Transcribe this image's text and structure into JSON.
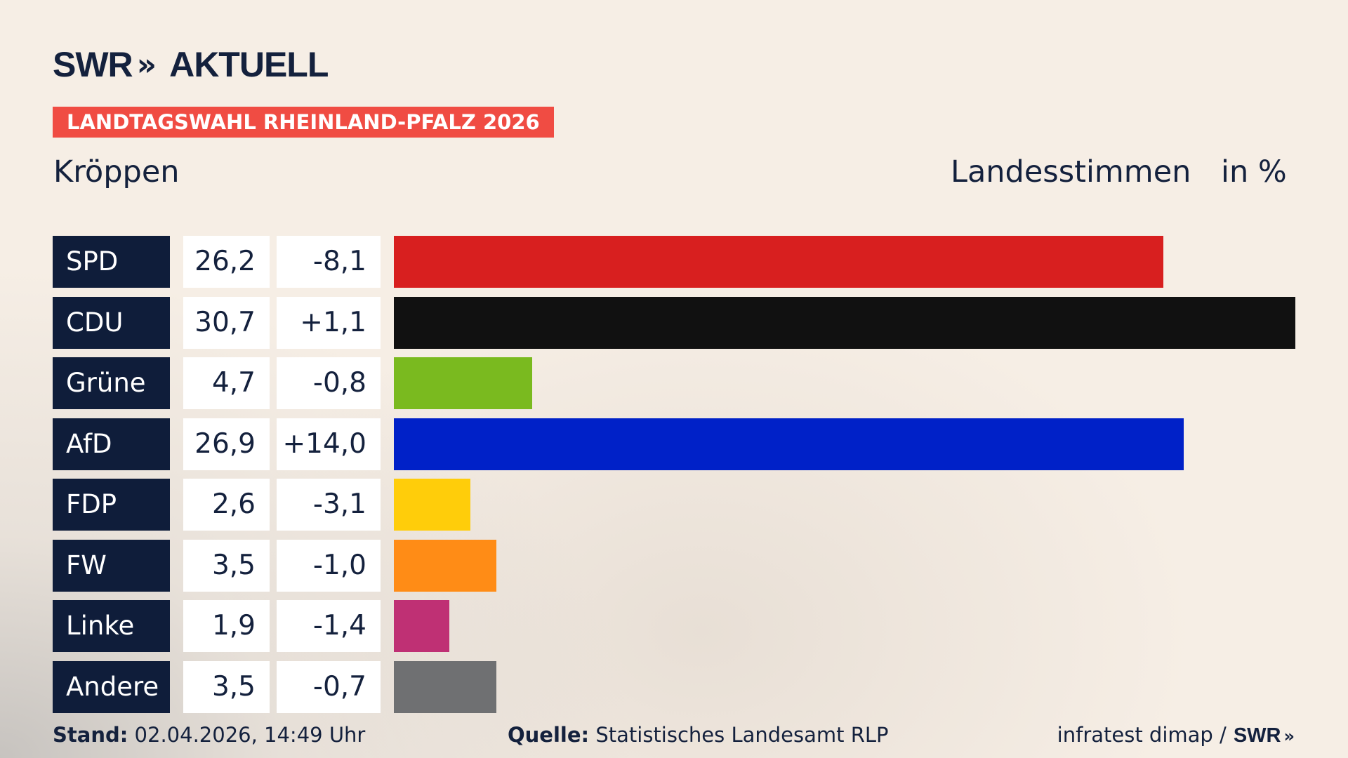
{
  "brand": {
    "name": "SWR",
    "arrow": "»",
    "product": "AKTUELL"
  },
  "badge": "LANDTAGSWAHL RHEINLAND-PFALZ 2026",
  "header": {
    "place": "Kröppen",
    "measure": "Landesstimmen",
    "unit": "in %"
  },
  "footer": {
    "stand_label": "Stand:",
    "stand_value": "02.04.2026, 14:49 Uhr",
    "quelle_label": "Quelle:",
    "quelle_value": "Statistisches Landesamt RLP",
    "credit": "infratest dimap /",
    "credit_brand": "SWR",
    "credit_arrow": "»"
  },
  "chart_data": {
    "type": "bar",
    "orientation": "horizontal",
    "title": "",
    "categories": [
      "SPD",
      "CDU",
      "Grüne",
      "AfD",
      "FDP",
      "FW",
      "Linke",
      "Andere"
    ],
    "values": [
      26.2,
      30.7,
      4.7,
      26.9,
      2.6,
      3.5,
      1.9,
      3.5
    ],
    "value_labels": [
      "26,2",
      "30,7",
      "4,7",
      "26,9",
      "2,6",
      "3,5",
      "1,9",
      "3,5"
    ],
    "diff_labels": [
      "-8,1",
      "+1,1",
      "-0,8",
      "+14,0",
      "-3,1",
      "-1,0",
      "-1,4",
      "-0,7"
    ],
    "colors": [
      "#d81f1f",
      "#111111",
      "#7aba1f",
      "#0021c8",
      "#ffcd0a",
      "#ff8c16",
      "#bf3074",
      "#6f7072"
    ],
    "xlim": [
      0,
      30.7
    ]
  }
}
